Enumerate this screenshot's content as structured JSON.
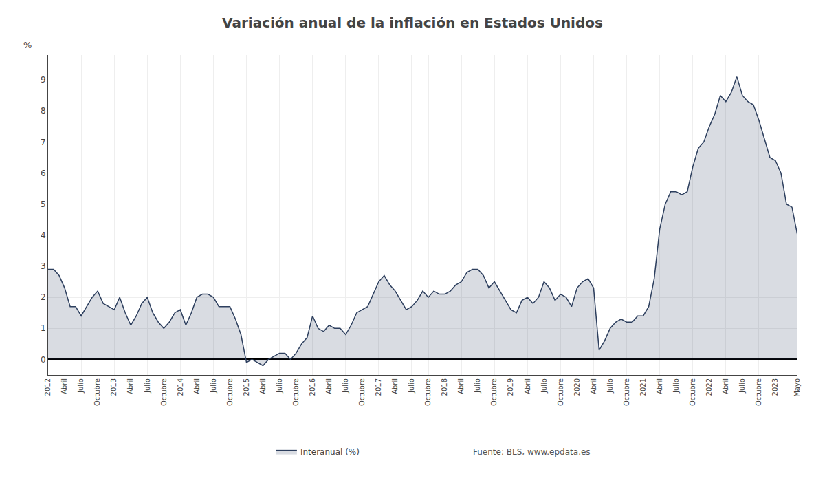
{
  "chart_data": {
    "type": "area",
    "title": "Variación anual de la inflación en Estados Unidos",
    "ylabel": "%",
    "annotations": [
      "Fuente: BLS, www.epdata.es"
    ],
    "categories": [
      "2012",
      null,
      null,
      "Abril",
      null,
      null,
      "Julio",
      null,
      null,
      "Octubre",
      null,
      null,
      "2013",
      null,
      null,
      "Abril",
      null,
      null,
      "Julio",
      null,
      null,
      "Octubre",
      null,
      null,
      "2014",
      null,
      null,
      "Abril",
      null,
      null,
      "Julio",
      null,
      null,
      "Octubre",
      null,
      null,
      "2015",
      null,
      null,
      "Abril",
      null,
      null,
      "Julio",
      null,
      null,
      "Octubre",
      null,
      null,
      "2016",
      null,
      null,
      "Abril",
      null,
      null,
      "Julio",
      null,
      null,
      "Octubre",
      null,
      null,
      "2017",
      null,
      null,
      "Abril",
      null,
      null,
      "Julio",
      null,
      null,
      "Octubre",
      null,
      null,
      "2018",
      null,
      null,
      "Abril",
      null,
      null,
      "Julio",
      null,
      null,
      "Octubre",
      null,
      null,
      "2019",
      null,
      null,
      "Abril",
      null,
      null,
      "Julio",
      null,
      null,
      "Octubre",
      null,
      null,
      "2020",
      null,
      null,
      "Abril",
      null,
      null,
      "Julio",
      null,
      null,
      "Octubre",
      null,
      null,
      "2021",
      null,
      null,
      "Abril",
      null,
      null,
      "Julio",
      null,
      null,
      "Octubre",
      null,
      null,
      "2022",
      null,
      null,
      "Abril",
      null,
      null,
      "Julio",
      null,
      null,
      "Octubre",
      null,
      null,
      "2023",
      null,
      null,
      null,
      "Mayo"
    ],
    "series": [
      {
        "name": "Interanual (%)",
        "color": "#2d3f5e",
        "values": [
          2.9,
          2.9,
          2.7,
          2.3,
          1.7,
          1.7,
          1.4,
          1.7,
          2.0,
          2.2,
          1.8,
          1.7,
          1.6,
          2.0,
          1.5,
          1.1,
          1.4,
          1.8,
          2.0,
          1.5,
          1.2,
          1.0,
          1.2,
          1.5,
          1.6,
          1.1,
          1.5,
          2.0,
          2.1,
          2.1,
          2.0,
          1.7,
          1.7,
          1.7,
          1.3,
          0.8,
          -0.1,
          0.0,
          -0.1,
          -0.2,
          0.0,
          0.1,
          0.2,
          0.2,
          0.0,
          0.2,
          0.5,
          0.7,
          1.4,
          1.0,
          0.9,
          1.1,
          1.0,
          1.0,
          0.8,
          1.1,
          1.5,
          1.6,
          1.7,
          2.1,
          2.5,
          2.7,
          2.4,
          2.2,
          1.9,
          1.6,
          1.7,
          1.9,
          2.2,
          2.0,
          2.2,
          2.1,
          2.1,
          2.2,
          2.4,
          2.5,
          2.8,
          2.9,
          2.9,
          2.7,
          2.3,
          2.5,
          2.2,
          1.9,
          1.6,
          1.5,
          1.9,
          2.0,
          1.8,
          2.0,
          2.5,
          2.3,
          1.9,
          2.1,
          2.0,
          1.7,
          2.3,
          2.5,
          2.6,
          2.3,
          0.3,
          0.6,
          1.0,
          1.2,
          1.3,
          1.2,
          1.2,
          1.4,
          1.4,
          1.7,
          2.6,
          4.2,
          5.0,
          5.4,
          5.4,
          5.3,
          5.4,
          6.2,
          6.8,
          7.0,
          7.5,
          7.9,
          8.5,
          8.3,
          8.6,
          9.1,
          8.5,
          8.3,
          8.2,
          7.7,
          7.1,
          6.5,
          6.4,
          6.0,
          5.0,
          4.9,
          4.0
        ]
      }
    ],
    "ylim": [
      -0.5,
      9.8
    ],
    "yticks": [
      0,
      1,
      2,
      3,
      4,
      5,
      6,
      7,
      8,
      9
    ],
    "grid": true,
    "legend": "bottom"
  }
}
